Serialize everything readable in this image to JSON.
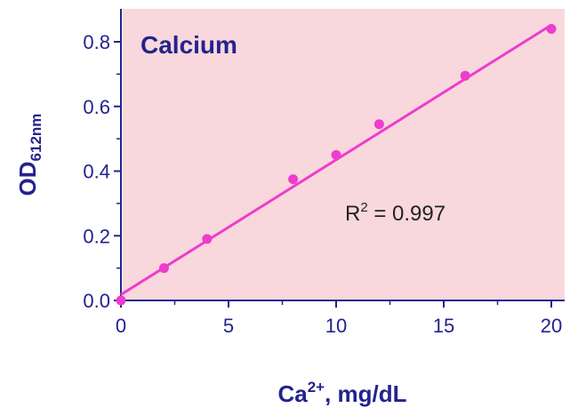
{
  "chart_data": {
    "type": "scatter",
    "title": "Calcium",
    "xlabel": {
      "base": "Ca",
      "sup": "2+",
      "rest": ", mg/dL"
    },
    "ylabel": {
      "base": "OD",
      "sub": "612nm"
    },
    "annotation": {
      "base": "R",
      "sup": "2",
      "rest": " = 0.997"
    },
    "xlim": [
      0,
      20
    ],
    "ylim": [
      0,
      0.85
    ],
    "xticks": [
      0,
      5,
      10,
      15,
      20
    ],
    "yticks": [
      0.0,
      0.2,
      0.4,
      0.6,
      0.8
    ],
    "xtick_labels": [
      "0",
      "5",
      "10",
      "15",
      "20"
    ],
    "ytick_labels": [
      "0.0",
      "0.2",
      "0.4",
      "0.6",
      "0.8"
    ],
    "points": [
      {
        "x": 0,
        "y": 0.0
      },
      {
        "x": 2,
        "y": 0.1
      },
      {
        "x": 4,
        "y": 0.19
      },
      {
        "x": 8,
        "y": 0.375
      },
      {
        "x": 10,
        "y": 0.45
      },
      {
        "x": 12,
        "y": 0.545
      },
      {
        "x": 16,
        "y": 0.695
      },
      {
        "x": 20,
        "y": 0.84
      }
    ],
    "fit_line": {
      "x": [
        0,
        20
      ],
      "y": [
        0.018,
        0.852
      ]
    },
    "grid": false,
    "colors": {
      "plot_background": "#f8d8dc",
      "marker": "#ee3ccf",
      "line": "#ee3ccf",
      "axis_text": "#23238e",
      "annotation_text": "#222222"
    }
  }
}
